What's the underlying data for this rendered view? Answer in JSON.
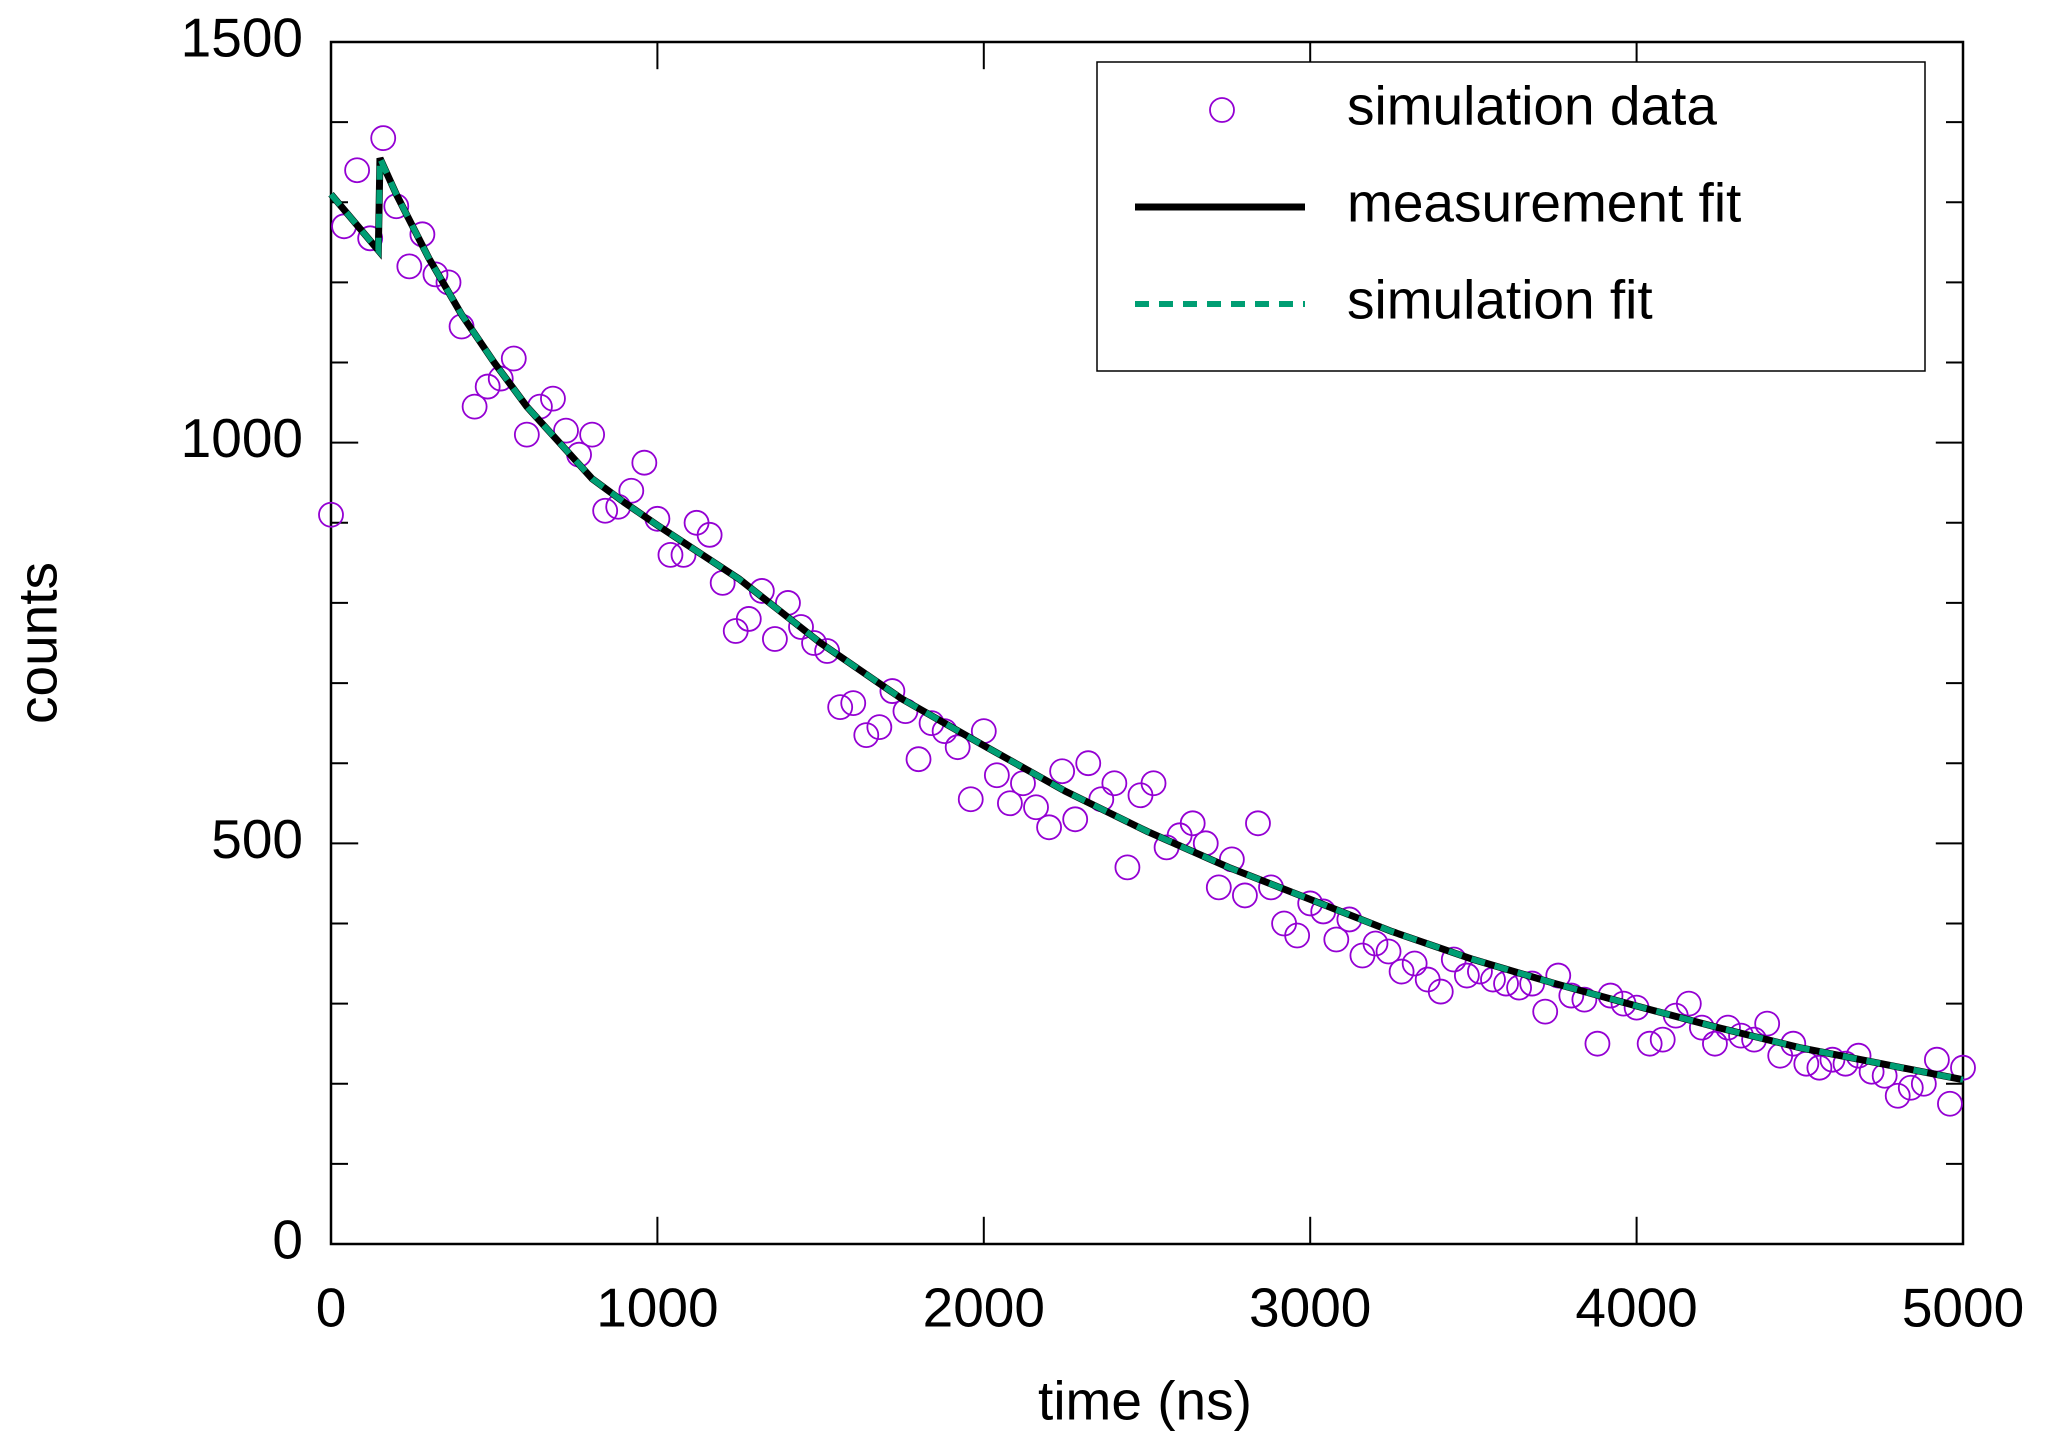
{
  "chart_data": {
    "type": "scatter",
    "xlabel": "time (ns)",
    "ylabel": "counts",
    "xlim": [
      0,
      5000
    ],
    "ylim": [
      0,
      1500
    ],
    "xticks": [
      0,
      1000,
      2000,
      3000,
      4000,
      5000
    ],
    "yticks": [
      0,
      500,
      1000,
      1500
    ],
    "y_minor_ticks": [
      100,
      200,
      300,
      400,
      600,
      700,
      800,
      900,
      1100,
      1200,
      1300,
      1400
    ],
    "legend": "upper right",
    "series": [
      {
        "name": "simulation data",
        "type": "scatter",
        "color": "#9400d3",
        "x": [
          0,
          40,
          80,
          120,
          160,
          200,
          240,
          280,
          320,
          360,
          400,
          440,
          480,
          520,
          560,
          600,
          640,
          680,
          720,
          760,
          800,
          840,
          880,
          920,
          960,
          1000,
          1040,
          1080,
          1120,
          1160,
          1200,
          1240,
          1280,
          1320,
          1360,
          1400,
          1440,
          1480,
          1520,
          1560,
          1600,
          1640,
          1680,
          1720,
          1760,
          1800,
          1840,
          1880,
          1920,
          1960,
          2000,
          2040,
          2080,
          2120,
          2160,
          2200,
          2240,
          2280,
          2320,
          2360,
          2400,
          2440,
          2480,
          2520,
          2560,
          2600,
          2640,
          2680,
          2720,
          2760,
          2800,
          2840,
          2880,
          2920,
          2960,
          3000,
          3040,
          3080,
          3120,
          3160,
          3200,
          3240,
          3280,
          3320,
          3360,
          3400,
          3440,
          3480,
          3520,
          3560,
          3600,
          3640,
          3680,
          3720,
          3760,
          3800,
          3840,
          3880,
          3920,
          3960,
          4000,
          4040,
          4080,
          4120,
          4160,
          4200,
          4240,
          4280,
          4320,
          4360,
          4400,
          4440,
          4480,
          4520,
          4560,
          4600,
          4640,
          4680,
          4720,
          4760,
          4800,
          4840,
          4880,
          4920,
          4960,
          5000
        ],
        "values": [
          910,
          1270,
          1340,
          1255,
          1380,
          1295,
          1220,
          1260,
          1210,
          1200,
          1145,
          1045,
          1070,
          1080,
          1105,
          1010,
          1045,
          1055,
          1015,
          985,
          1010,
          915,
          920,
          940,
          975,
          905,
          860,
          860,
          900,
          885,
          825,
          765,
          780,
          815,
          755,
          800,
          770,
          750,
          740,
          670,
          675,
          635,
          645,
          690,
          665,
          605,
          650,
          640,
          620,
          555,
          640,
          585,
          550,
          575,
          545,
          520,
          590,
          530,
          600,
          555,
          575,
          470,
          560,
          575,
          495,
          510,
          525,
          500,
          445,
          480,
          435,
          525,
          445,
          400,
          385,
          425,
          415,
          380,
          405,
          360,
          375,
          365,
          340,
          350,
          330,
          315,
          355,
          335,
          340,
          330,
          325,
          320,
          325,
          290,
          335,
          310,
          305,
          250,
          310,
          300,
          295,
          250,
          255,
          285,
          300,
          270,
          250,
          270,
          260,
          255,
          275,
          235,
          250,
          225,
          220,
          230,
          225,
          235,
          215,
          210,
          185,
          195,
          200,
          230,
          175,
          220
        ]
      },
      {
        "name": "measurement fit",
        "type": "line",
        "color": "#000000",
        "x": [
          0,
          145,
          150,
          200,
          250,
          300,
          350,
          400,
          500,
          600,
          700,
          800,
          900,
          1000,
          1250,
          1500,
          1750,
          2000,
          2250,
          2500,
          2750,
          3000,
          3250,
          3500,
          3750,
          4000,
          4250,
          4500,
          4750,
          5000
        ],
        "values": [
          1310,
          1240,
          1355,
          1310,
          1270,
          1230,
          1195,
          1160,
          1100,
          1045,
          1000,
          955,
          925,
          897,
          830,
          750,
          680,
          622,
          565,
          515,
          470,
          430,
          390,
          355,
          325,
          297,
          270,
          245,
          225,
          205
        ]
      },
      {
        "name": "simulation fit",
        "type": "dashed-line",
        "color": "#009e73",
        "x": [
          0,
          145,
          150,
          200,
          250,
          300,
          350,
          400,
          500,
          600,
          700,
          800,
          900,
          1000,
          1250,
          1500,
          1750,
          2000,
          2250,
          2500,
          2750,
          3000,
          3250,
          3500,
          3750,
          4000,
          4250,
          4500,
          4750,
          5000
        ],
        "values": [
          1310,
          1240,
          1355,
          1310,
          1270,
          1230,
          1195,
          1160,
          1100,
          1045,
          1000,
          955,
          925,
          897,
          830,
          750,
          680,
          622,
          565,
          515,
          470,
          430,
          390,
          355,
          325,
          297,
          270,
          245,
          225,
          205
        ]
      }
    ]
  }
}
